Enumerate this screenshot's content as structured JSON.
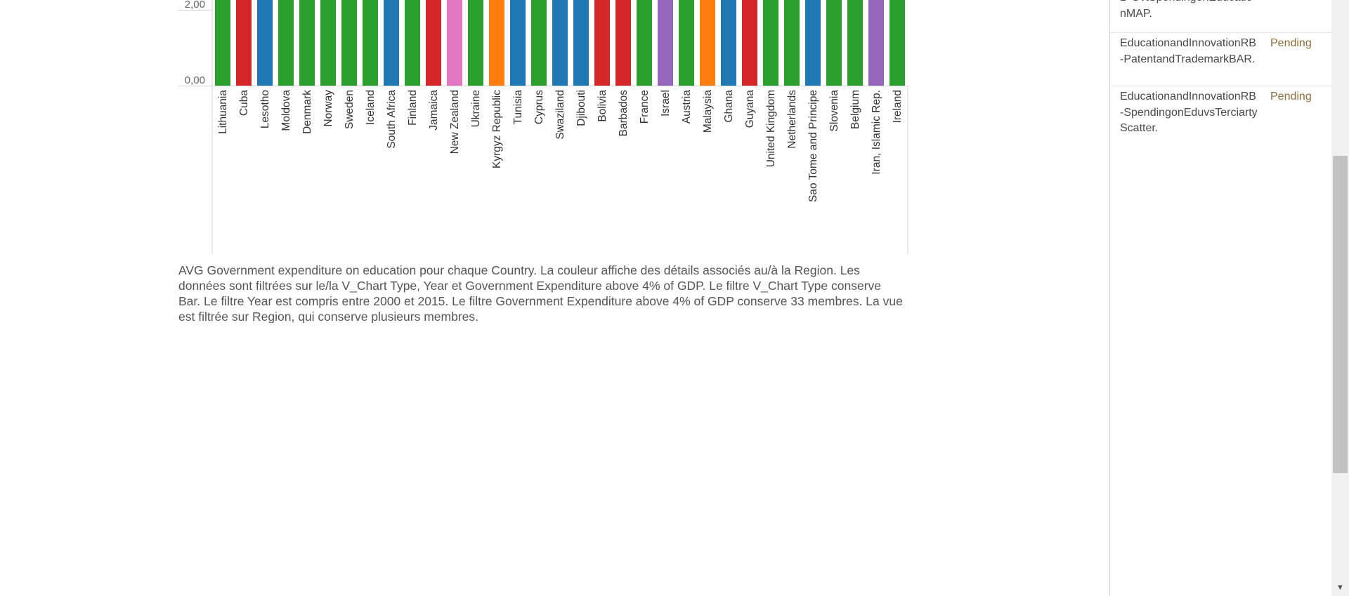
{
  "chart_data": {
    "type": "bar",
    "y_ticks": [
      "2,00",
      "0,00"
    ],
    "categories": [
      "Lithuania",
      "Cuba",
      "Lesotho",
      "Moldova",
      "Denmark",
      "Norway",
      "Sweden",
      "Iceland",
      "South Africa",
      "Finland",
      "Jamaica",
      "New Zealand",
      "Ukraine",
      "Kyrgyz Republic",
      "Tunisia",
      "Cyprus",
      "Swaziland",
      "Djibouti",
      "Bolivia",
      "Barbados",
      "France",
      "Israel",
      "Austria",
      "Malaysia",
      "Ghana",
      "Guyana",
      "United Kingdom",
      "Netherlands",
      "Sao Tome and Principe",
      "Slovenia",
      "Belgium",
      "Iran, Islamic Rep.",
      "Ireland"
    ],
    "bar_colors": [
      "#2ca02c",
      "#d62728",
      "#1f77b4",
      "#2ca02c",
      "#2ca02c",
      "#2ca02c",
      "#2ca02c",
      "#2ca02c",
      "#1f77b4",
      "#2ca02c",
      "#d62728",
      "#e377c2",
      "#2ca02c",
      "#ff7f0e",
      "#1f77b4",
      "#2ca02c",
      "#1f77b4",
      "#1f77b4",
      "#d62728",
      "#d62728",
      "#2ca02c",
      "#9467bd",
      "#2ca02c",
      "#ff7f0e",
      "#1f77b4",
      "#d62728",
      "#2ca02c",
      "#2ca02c",
      "#1f77b4",
      "#2ca02c",
      "#2ca02c",
      "#9467bd",
      "#2ca02c"
    ],
    "visible_top_value": 2.55,
    "y_tick_values": [
      2,
      0
    ]
  },
  "caption": "AVG Government expenditure on education pour chaque Country.  La couleur affiche des détails associés au/à la Region. Les données sont filtrées sur le/la V_Chart Type, Year et Government Expenditure above 4% of GDP. Le filtre V_Chart Type conserve Bar. Le filtre Year est compris entre 2000 et 2015. Le filtre Government Expenditure above 4% of GDP conserve 33 membres. La vue est filtrée sur Region, qui conserve plusieurs membres.",
  "tasks": [
    {
      "name": "B-GvtSpendingonEducationMAP.",
      "status": ""
    },
    {
      "name": "EducationandInnovationRB-PatentandTrademarkBAR.",
      "status": "Pending"
    },
    {
      "name": "EducationandInnovationRB-SpendingonEduvsTerciartyScatter.",
      "status": "Pending"
    }
  ],
  "scroll_down_glyph": "▼"
}
